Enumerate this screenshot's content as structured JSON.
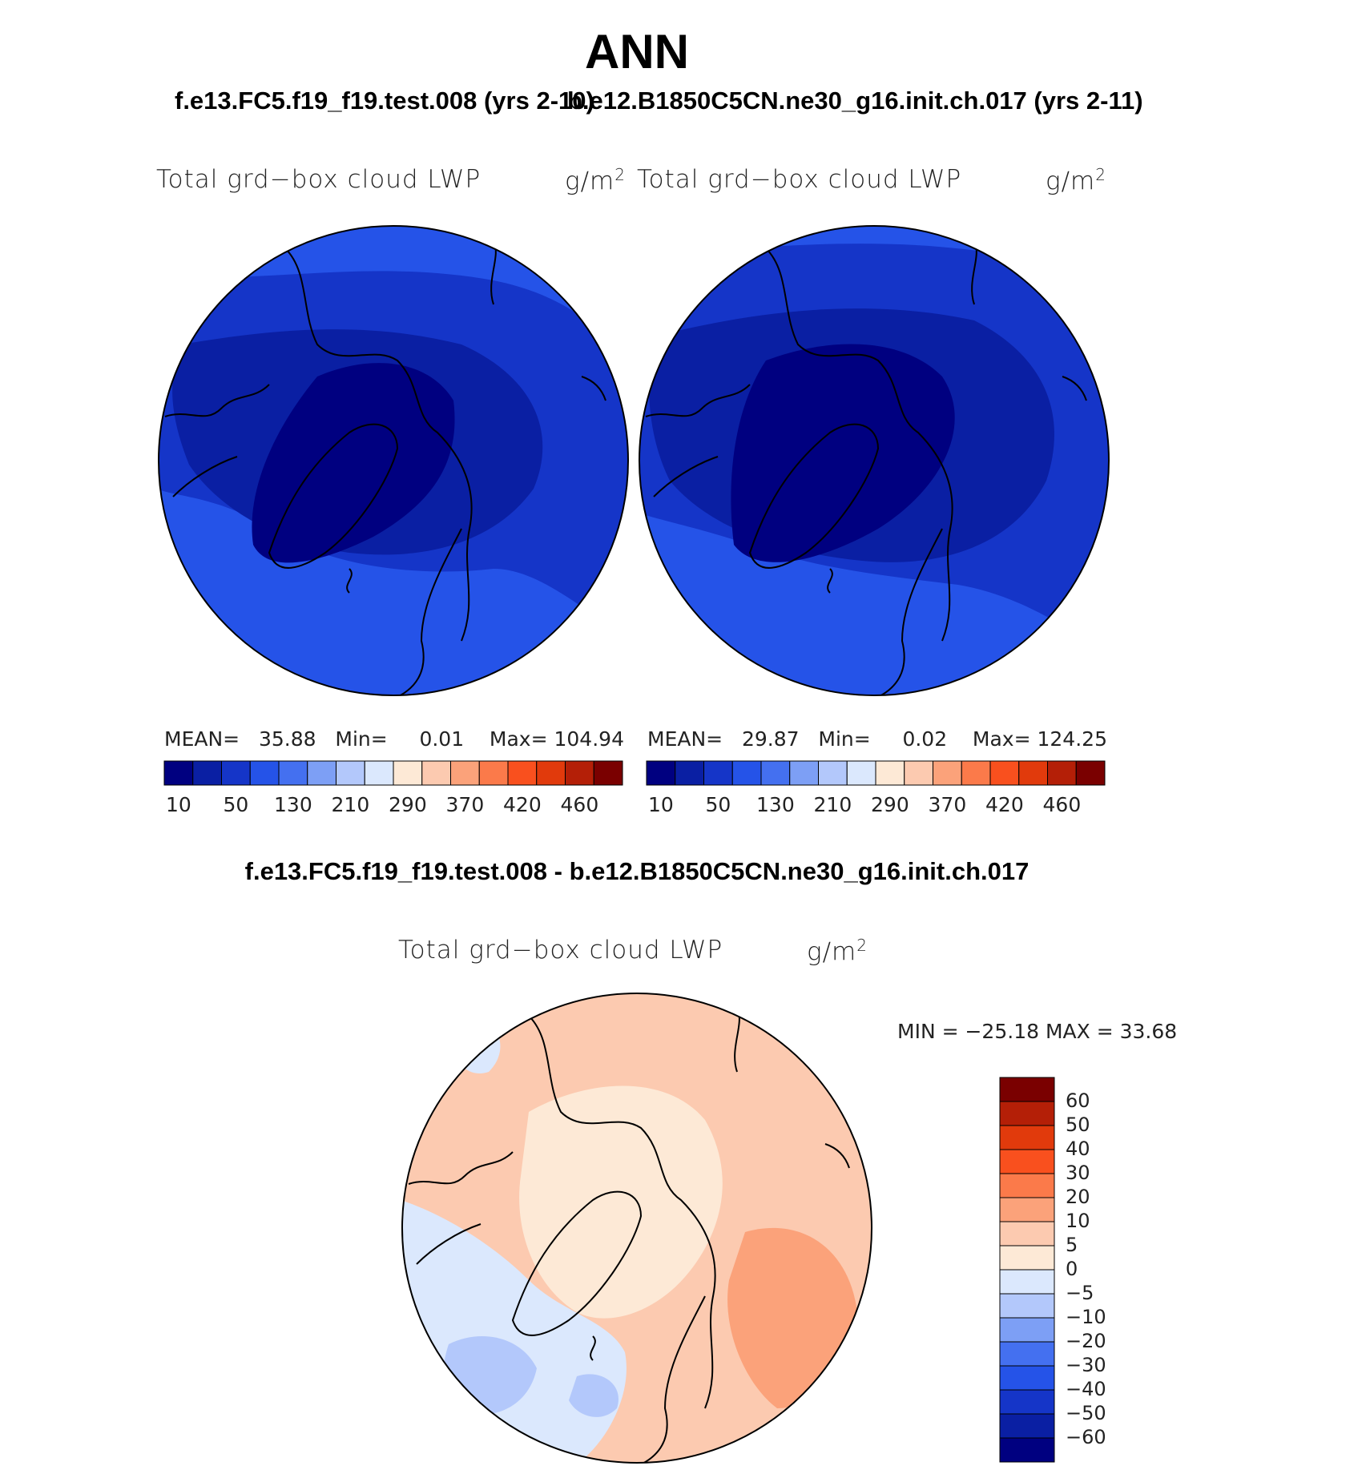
{
  "season": "ANN",
  "panels": {
    "left": {
      "case": "f.e13.FC5.f19_f19.test.008 (yrs 2-10)",
      "variable": "Total grd−box cloud LWP",
      "units_base": "g/m",
      "units_exp": "2",
      "stats": {
        "mean_label": "MEAN=",
        "mean": "35.88",
        "min_label": "Min=",
        "min": "0.01",
        "max_label": "Max=",
        "max": "104.94"
      }
    },
    "right": {
      "case": "b.e12.B1850C5CN.ne30_g16.init.ch.017 (yrs 2-11)",
      "variable": "Total grd−box cloud LWP",
      "units_base": "g/m",
      "units_exp": "2",
      "stats": {
        "mean_label": "MEAN=",
        "mean": "29.87",
        "min_label": "Min=",
        "min": "0.02",
        "max_label": "Max=",
        "max": "124.25"
      }
    },
    "diff": {
      "title": "f.e13.FC5.f19_f19.test.008 - b.e12.B1850C5CN.ne30_g16.init.ch.017",
      "variable": "Total grd−box cloud LWP",
      "units_base": "g/m",
      "units_exp": "2",
      "minmax": "MIN = −25.18 MAX =   33.68"
    }
  },
  "colorbar_abs": {
    "colors": [
      "#000080",
      "#0a1fa3",
      "#1535c8",
      "#2553e8",
      "#4470f0",
      "#7d9ff5",
      "#b3c8fb",
      "#dbe8fd",
      "#fde9d6",
      "#fccab0",
      "#fba27a",
      "#fb7a4a",
      "#f9501e",
      "#e13a0c",
      "#b41f07",
      "#7a0000"
    ],
    "tick_labels": [
      "10",
      "50",
      "130",
      "210",
      "290",
      "370",
      "420",
      "460"
    ]
  },
  "colorbar_diff": {
    "colors": [
      "#000080",
      "#0a1fa3",
      "#1535c8",
      "#2553e8",
      "#4470f0",
      "#7d9ff5",
      "#b3c8fb",
      "#dbe8fd",
      "#fde9d6",
      "#fccab0",
      "#fba27a",
      "#fb7a4a",
      "#f9501e",
      "#e13a0c",
      "#b41f07",
      "#7a0000"
    ],
    "tick_labels": [
      "60",
      "50",
      "40",
      "30",
      "20",
      "10",
      "5",
      "0",
      "−5",
      "−10",
      "−20",
      "−30",
      "−40",
      "−50",
      "−60"
    ]
  },
  "map_colors": {
    "abs_darkest": "#000080",
    "abs_dark": "#0a1fa3",
    "abs_mid": "#1535c8",
    "abs_light": "#2553e8",
    "diff_pos_light": "#fde9d6",
    "diff_pos_mid": "#fccab0",
    "diff_pos_strong": "#fba27a",
    "diff_neg_light": "#dbe8fd",
    "diff_neg_mid": "#b3c8fb",
    "diff_neg_strong": "#7d9ff5"
  }
}
